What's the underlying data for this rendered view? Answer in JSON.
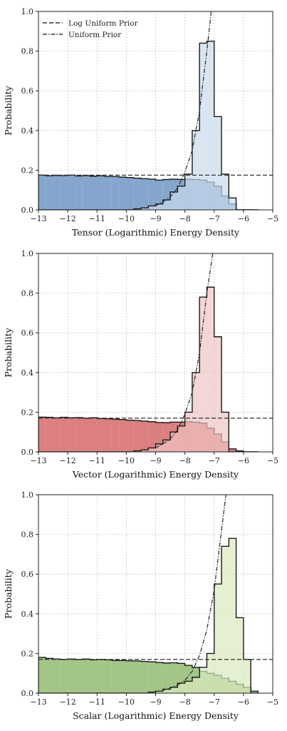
{
  "chart_data": [
    {
      "type": "histogram",
      "xlabel": "Tensor (Logarithmic) Energy Density",
      "ylabel": "Probability",
      "xlim": [
        -13,
        -5
      ],
      "ylim": [
        0,
        1
      ],
      "xticks": [
        -13,
        -12,
        -11,
        -10,
        -9,
        -8,
        -7,
        -6,
        -5
      ],
      "xtick_labels": [
        "−13",
        "−12",
        "−11",
        "−10",
        "−9",
        "−8",
        "−7",
        "−6",
        "−5"
      ],
      "yticks": [
        0,
        0.2,
        0.4,
        0.6,
        0.8,
        1.0
      ],
      "ytick_labels": [
        "0.0",
        "0.2",
        "0.4",
        "0.6",
        "0.8",
        "1.0"
      ],
      "grid": true,
      "legend_position": "top-left",
      "legend": [
        {
          "label": "Log Uniform Prior",
          "style": "dashed"
        },
        {
          "label": "Uniform Prior",
          "style": "dashdot"
        }
      ],
      "colors": {
        "dark": "#6f97c4",
        "light": "#c9dbec"
      },
      "bin_edges": [
        -13.0,
        -12.75,
        -12.5,
        -12.25,
        -12.0,
        -11.75,
        -11.5,
        -11.25,
        -11.0,
        -10.75,
        -10.5,
        -10.25,
        -10.0,
        -9.75,
        -9.5,
        -9.25,
        -9.0,
        -8.75,
        -8.5,
        -8.25,
        -8.0,
        -7.75,
        -7.5,
        -7.25,
        -7.0,
        -6.75,
        -6.5,
        -6.25,
        -6.0,
        -5.75,
        -5.5
      ],
      "log_uniform_hist": [
        0.175,
        0.172,
        0.174,
        0.173,
        0.175,
        0.171,
        0.173,
        0.17,
        0.172,
        0.169,
        0.168,
        0.165,
        0.163,
        0.16,
        0.157,
        0.155,
        0.15,
        0.153,
        0.155,
        0.153,
        0.155,
        0.153,
        0.15,
        0.14,
        0.12,
        0.07,
        0.03,
        0.0,
        0.0,
        0.0
      ],
      "uniform_hist": [
        0.0,
        0.0,
        0.0,
        0.0,
        0.0,
        0.0,
        0.0,
        0.0,
        0.0,
        0.0,
        0.0,
        0.0,
        0.0,
        0.005,
        0.01,
        0.02,
        0.03,
        0.05,
        0.09,
        0.12,
        0.18,
        0.4,
        0.84,
        0.85,
        0.47,
        0.18,
        0.06,
        0.0,
        0.0,
        0.0
      ],
      "log_uniform_prior": 0.175,
      "uniform_prior_x": [
        -9.0,
        -8.75,
        -8.5,
        -8.25,
        -8.0,
        -7.75,
        -7.5,
        -7.25,
        -7.1
      ],
      "uniform_prior_y": [
        0.02,
        0.04,
        0.065,
        0.11,
        0.19,
        0.3,
        0.5,
        0.8,
        1.0
      ]
    },
    {
      "type": "histogram",
      "xlabel": "Vector (Logarithmic) Energy Density",
      "ylabel": "Probability",
      "xlim": [
        -13,
        -5
      ],
      "ylim": [
        0,
        1
      ],
      "xticks": [
        -13,
        -12,
        -11,
        -10,
        -9,
        -8,
        -7,
        -6,
        -5
      ],
      "xtick_labels": [
        "−13",
        "−12",
        "−11",
        "−10",
        "−9",
        "−8",
        "−7",
        "−6",
        "−5"
      ],
      "yticks": [
        0,
        0.2,
        0.4,
        0.6,
        0.8,
        1.0
      ],
      "ytick_labels": [
        "0.0",
        "0.2",
        "0.4",
        "0.6",
        "0.8",
        "1.0"
      ],
      "grid": true,
      "colors": {
        "dark": "#d66868",
        "light": "#eec4c3"
      },
      "bin_edges": [
        -13.0,
        -12.75,
        -12.5,
        -12.25,
        -12.0,
        -11.75,
        -11.5,
        -11.25,
        -11.0,
        -10.75,
        -10.5,
        -10.25,
        -10.0,
        -9.75,
        -9.5,
        -9.25,
        -9.0,
        -8.75,
        -8.5,
        -8.25,
        -8.0,
        -7.75,
        -7.5,
        -7.25,
        -7.0,
        -6.75,
        -6.5,
        -6.25,
        -6.0,
        -5.75,
        -5.5
      ],
      "log_uniform_hist": [
        0.175,
        0.174,
        0.172,
        0.174,
        0.172,
        0.173,
        0.17,
        0.172,
        0.168,
        0.167,
        0.165,
        0.163,
        0.16,
        0.158,
        0.155,
        0.152,
        0.148,
        0.147,
        0.15,
        0.15,
        0.152,
        0.15,
        0.145,
        0.12,
        0.09,
        0.05,
        0.015,
        0.005,
        0.0,
        0.0
      ],
      "uniform_hist": [
        0.0,
        0.0,
        0.0,
        0.0,
        0.0,
        0.0,
        0.0,
        0.0,
        0.0,
        0.0,
        0.0,
        0.0,
        0.0,
        0.005,
        0.01,
        0.02,
        0.04,
        0.06,
        0.1,
        0.13,
        0.2,
        0.4,
        0.78,
        0.83,
        0.58,
        0.2,
        0.0,
        0.0,
        0.0,
        0.0
      ],
      "log_uniform_prior": 0.17,
      "uniform_prior_x": [
        -9.0,
        -8.75,
        -8.5,
        -8.25,
        -8.0,
        -7.75,
        -7.5,
        -7.25,
        -7.05
      ],
      "uniform_prior_y": [
        0.02,
        0.04,
        0.065,
        0.11,
        0.19,
        0.3,
        0.5,
        0.8,
        1.0
      ]
    },
    {
      "type": "histogram",
      "xlabel": "Scalar (Logarithmic) Energy Density",
      "ylabel": "Probability",
      "xlim": [
        -13,
        -5
      ],
      "ylim": [
        0,
        1
      ],
      "xticks": [
        -13,
        -12,
        -11,
        -10,
        -9,
        -8,
        -7,
        -6,
        -5
      ],
      "xtick_labels": [
        "−13",
        "−12",
        "−11",
        "−10",
        "−9",
        "−8",
        "−7",
        "−6",
        "−5"
      ],
      "yticks": [
        0,
        0.2,
        0.4,
        0.6,
        0.8,
        1.0
      ],
      "ytick_labels": [
        "0.0",
        "0.2",
        "0.4",
        "0.6",
        "0.8",
        "1.0"
      ],
      "grid": true,
      "colors": {
        "dark": "#93bb72",
        "light": "#d8e9be"
      },
      "bin_edges": [
        -13.0,
        -12.75,
        -12.5,
        -12.25,
        -12.0,
        -11.75,
        -11.5,
        -11.25,
        -11.0,
        -10.75,
        -10.5,
        -10.25,
        -10.0,
        -9.75,
        -9.5,
        -9.25,
        -9.0,
        -8.75,
        -8.5,
        -8.25,
        -8.0,
        -7.75,
        -7.5,
        -7.25,
        -7.0,
        -6.75,
        -6.5,
        -6.25,
        -6.0,
        -5.75,
        -5.5
      ],
      "log_uniform_hist": [
        0.18,
        0.175,
        0.172,
        0.17,
        0.172,
        0.17,
        0.172,
        0.168,
        0.17,
        0.168,
        0.165,
        0.165,
        0.163,
        0.162,
        0.16,
        0.158,
        0.155,
        0.152,
        0.153,
        0.15,
        0.14,
        0.13,
        0.11,
        0.1,
        0.09,
        0.075,
        0.06,
        0.045,
        0.03,
        0.01
      ],
      "uniform_hist": [
        0.0,
        0.0,
        0.0,
        0.0,
        0.0,
        0.0,
        0.0,
        0.0,
        0.0,
        0.0,
        0.0,
        0.0,
        0.0,
        0.0,
        0.0,
        0.005,
        0.01,
        0.02,
        0.03,
        0.05,
        0.06,
        0.08,
        0.13,
        0.2,
        0.55,
        0.74,
        0.78,
        0.38,
        0.17,
        0.0
      ],
      "log_uniform_prior": 0.17,
      "uniform_prior_x": [
        -8.75,
        -8.5,
        -8.25,
        -8.0,
        -7.75,
        -7.5,
        -7.25,
        -7.0,
        -6.75,
        -6.6
      ],
      "uniform_prior_y": [
        0.015,
        0.025,
        0.04,
        0.065,
        0.11,
        0.19,
        0.32,
        0.52,
        0.82,
        1.0
      ]
    }
  ]
}
